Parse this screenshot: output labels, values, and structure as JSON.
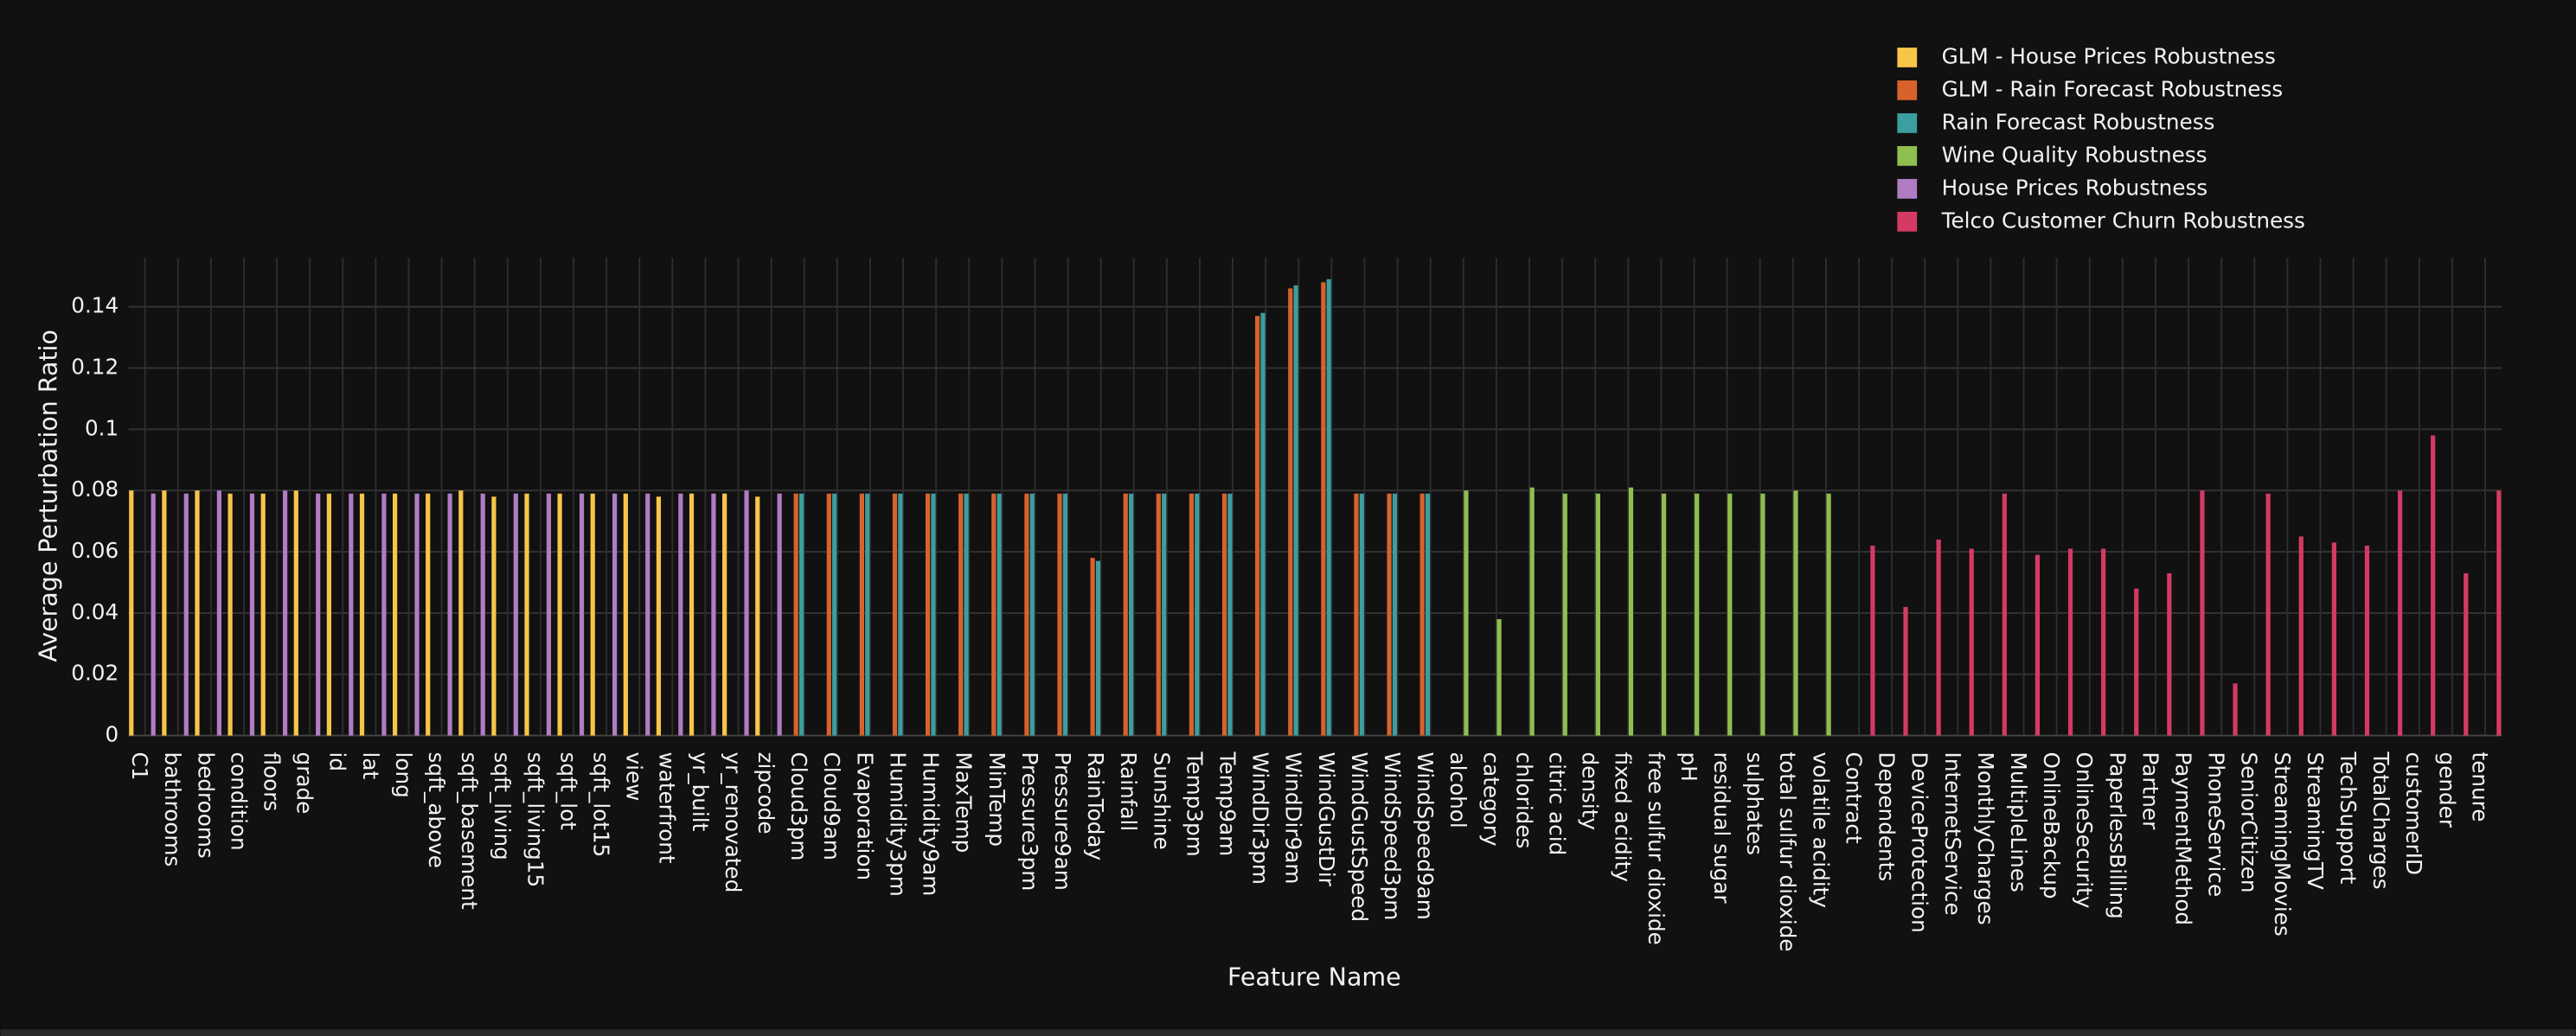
{
  "chart_data": {
    "type": "bar",
    "x_label": "Feature Name",
    "y_label": "Average Perturbation Ratio",
    "categories": [
      "C1",
      "bathrooms",
      "bedrooms",
      "condition",
      "floors",
      "grade",
      "id",
      "lat",
      "long",
      "sqft_above",
      "sqft_basement",
      "sqft_living",
      "sqft_living15",
      "sqft_lot",
      "sqft_lot15",
      "view",
      "waterfront",
      "yr_built",
      "yr_renovated",
      "zipcode",
      "Cloud3pm",
      "Cloud9am",
      "Evaporation",
      "Humidity3pm",
      "Humidity9am",
      "MaxTemp",
      "MinTemp",
      "Pressure3pm",
      "Pressure9am",
      "RainToday",
      "Rainfall",
      "Sunshine",
      "Temp3pm",
      "Temp9am",
      "WindDir3pm",
      "WindDir9am",
      "WindGustDir",
      "WindGustSpeed",
      "WindSpeed3pm",
      "WindSpeed9am",
      "alcohol",
      "category",
      "chlorides",
      "citric acid",
      "density",
      "fixed acidity",
      "free sulfur dioxide",
      "pH",
      "residual sugar",
      "sulphates",
      "total sulfur dioxide",
      "volatile acidity",
      "Contract",
      "Dependents",
      "DeviceProtection",
      "InternetService",
      "MonthlyCharges",
      "MultipleLines",
      "OnlineBackup",
      "OnlineSecurity",
      "PaperlessBilling",
      "Partner",
      "PaymentMethod",
      "PhoneService",
      "SeniorCitizen",
      "StreamingMovies",
      "StreamingTV",
      "TechSupport",
      "TotalCharges",
      "customerID",
      "gender",
      "tenure"
    ],
    "series": [
      {
        "name": "GLM - House Prices Robustness",
        "color": "#f7c548",
        "values": [
          0.08,
          0.08,
          0.08,
          0.079,
          0.079,
          0.08,
          0.079,
          0.079,
          0.079,
          0.079,
          0.08,
          0.078,
          0.079,
          0.079,
          0.079,
          0.079,
          0.078,
          0.079,
          0.079,
          0.078,
          null,
          null,
          null,
          null,
          null,
          null,
          null,
          null,
          null,
          null,
          null,
          null,
          null,
          null,
          null,
          null,
          null,
          null,
          null,
          null,
          null,
          null,
          null,
          null,
          null,
          null,
          null,
          null,
          null,
          null,
          null,
          null,
          null,
          null,
          null,
          null,
          null,
          null,
          null,
          null,
          null,
          null,
          null,
          null,
          null,
          null,
          null,
          null,
          null,
          null,
          null,
          null
        ]
      },
      {
        "name": "GLM - Rain Forecast Robustness",
        "color": "#d8622b",
        "values": [
          null,
          null,
          null,
          null,
          null,
          null,
          null,
          null,
          null,
          null,
          null,
          null,
          null,
          null,
          null,
          null,
          null,
          null,
          null,
          null,
          0.079,
          0.079,
          0.079,
          0.079,
          0.079,
          0.079,
          0.079,
          0.079,
          0.079,
          0.058,
          0.079,
          0.079,
          0.079,
          0.079,
          0.137,
          0.146,
          0.148,
          0.079,
          0.079,
          0.079,
          null,
          null,
          null,
          null,
          null,
          null,
          null,
          null,
          null,
          null,
          null,
          null,
          null,
          null,
          null,
          null,
          null,
          null,
          null,
          null,
          null,
          null,
          null,
          null,
          null,
          null,
          null,
          null,
          null,
          null,
          null,
          null
        ]
      },
      {
        "name": "Rain Forecast Robustness",
        "color": "#3b9ea0",
        "values": [
          null,
          null,
          null,
          null,
          null,
          null,
          null,
          null,
          null,
          null,
          null,
          null,
          null,
          null,
          null,
          null,
          null,
          null,
          null,
          null,
          0.079,
          0.079,
          0.079,
          0.079,
          0.079,
          0.079,
          0.079,
          0.079,
          0.079,
          0.057,
          0.079,
          0.079,
          0.079,
          0.079,
          0.138,
          0.147,
          0.149,
          0.079,
          0.079,
          0.079,
          null,
          null,
          null,
          null,
          null,
          null,
          null,
          null,
          null,
          null,
          null,
          null,
          null,
          null,
          null,
          null,
          null,
          null,
          null,
          null,
          null,
          null,
          null,
          null,
          null,
          null,
          null,
          null,
          null,
          null,
          null,
          null
        ]
      },
      {
        "name": "Wine Quality Robustness",
        "color": "#8fbf4f",
        "values": [
          null,
          null,
          null,
          null,
          null,
          null,
          null,
          null,
          null,
          null,
          null,
          null,
          null,
          null,
          null,
          null,
          null,
          null,
          null,
          null,
          null,
          null,
          null,
          null,
          null,
          null,
          null,
          null,
          null,
          null,
          null,
          null,
          null,
          null,
          null,
          null,
          null,
          null,
          null,
          null,
          0.08,
          0.038,
          0.081,
          0.079,
          0.079,
          0.081,
          0.079,
          0.079,
          0.079,
          0.079,
          0.08,
          0.079,
          null,
          null,
          null,
          null,
          null,
          null,
          null,
          null,
          null,
          null,
          null,
          null,
          null,
          null,
          null,
          null,
          null,
          null,
          null,
          null
        ]
      },
      {
        "name": "House Prices Robustness",
        "color": "#b07cc4",
        "values": [
          0.079,
          0.079,
          0.08,
          0.079,
          0.08,
          0.079,
          0.079,
          0.079,
          0.079,
          0.079,
          0.079,
          0.079,
          0.079,
          0.079,
          0.079,
          0.079,
          0.079,
          0.079,
          0.08,
          0.079,
          null,
          null,
          null,
          null,
          null,
          null,
          null,
          null,
          null,
          null,
          null,
          null,
          null,
          null,
          null,
          null,
          null,
          null,
          null,
          null,
          null,
          null,
          null,
          null,
          null,
          null,
          null,
          null,
          null,
          null,
          null,
          null,
          null,
          null,
          null,
          null,
          null,
          null,
          null,
          null,
          null,
          null,
          null,
          null,
          null,
          null,
          null,
          null,
          null,
          null,
          null,
          null
        ]
      },
      {
        "name": "Telco Customer Churn Robustness",
        "color": "#d43a64",
        "values": [
          null,
          null,
          null,
          null,
          null,
          null,
          null,
          null,
          null,
          null,
          null,
          null,
          null,
          null,
          null,
          null,
          null,
          null,
          null,
          null,
          null,
          null,
          null,
          null,
          null,
          null,
          null,
          null,
          null,
          null,
          null,
          null,
          null,
          null,
          null,
          null,
          null,
          null,
          null,
          null,
          null,
          null,
          null,
          null,
          null,
          null,
          null,
          null,
          null,
          null,
          null,
          null,
          0.062,
          0.042,
          0.064,
          0.061,
          0.079,
          0.059,
          0.061,
          0.061,
          0.048,
          0.053,
          0.08,
          0.017,
          0.079,
          0.065,
          0.063,
          0.062,
          0.08,
          0.098,
          0.053,
          0.08
        ]
      }
    ],
    "ylim": [
      0,
      0.156
    ],
    "yticks": [
      0,
      0.02,
      0.04,
      0.06,
      0.08,
      0.1,
      0.12,
      0.14
    ],
    "grid": true,
    "legend": "top-right"
  }
}
